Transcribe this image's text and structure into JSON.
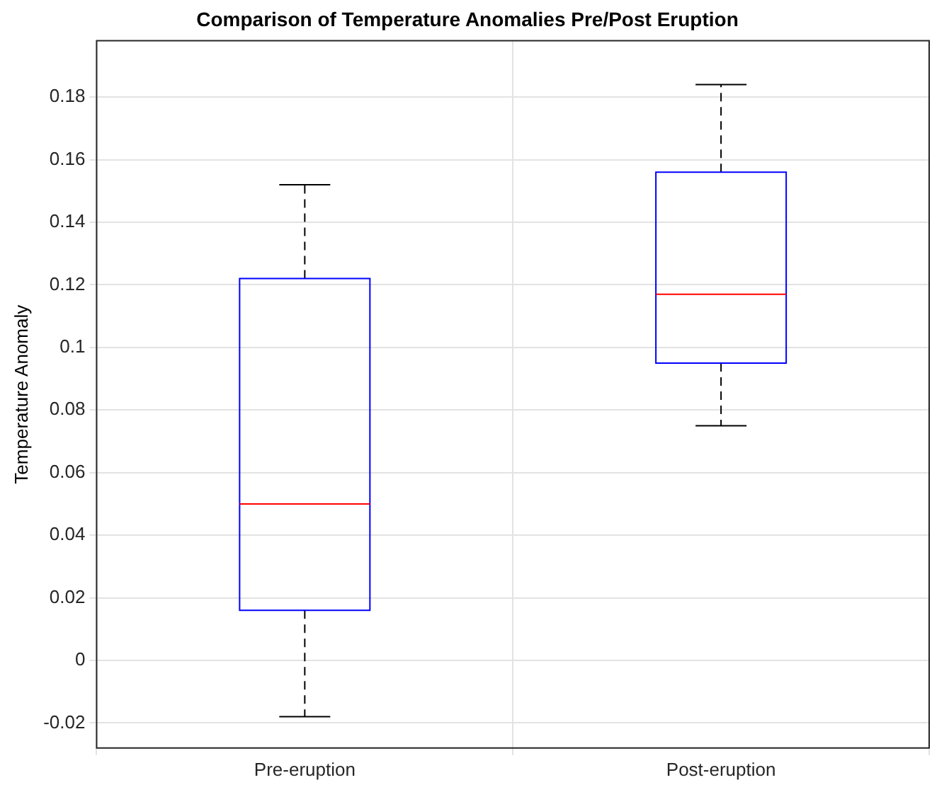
{
  "chart_data": {
    "type": "box",
    "title": "Comparison of Temperature Anomalies Pre/Post Eruption",
    "ylabel": "Temperature Anomaly",
    "categories": [
      "Pre-eruption",
      "Post-eruption"
    ],
    "series": [
      {
        "color": "#0000ff",
        "boxes": [
          {
            "low": -0.018,
            "q1": 0.016,
            "median": 0.05,
            "q3": 0.122,
            "high": 0.152
          },
          {
            "low": 0.075,
            "q1": 0.095,
            "median": 0.117,
            "q3": 0.156,
            "high": 0.184
          }
        ]
      }
    ],
    "ylim": [
      -0.028,
      0.198
    ],
    "yticks": [
      {
        "value": -0.02,
        "label": "-0.02"
      },
      {
        "value": 0,
        "label": "0"
      },
      {
        "value": 0.02,
        "label": "0.02"
      },
      {
        "value": 0.04,
        "label": "0.04"
      },
      {
        "value": 0.06,
        "label": "0.06"
      },
      {
        "value": 0.08,
        "label": "0.08"
      },
      {
        "value": 0.1,
        "label": "0.1"
      },
      {
        "value": 0.12,
        "label": "0.12"
      },
      {
        "value": 0.14,
        "label": "0.14"
      },
      {
        "value": 0.16,
        "label": "0.16"
      },
      {
        "value": 0.18,
        "label": "0.18"
      }
    ],
    "grid": true
  }
}
